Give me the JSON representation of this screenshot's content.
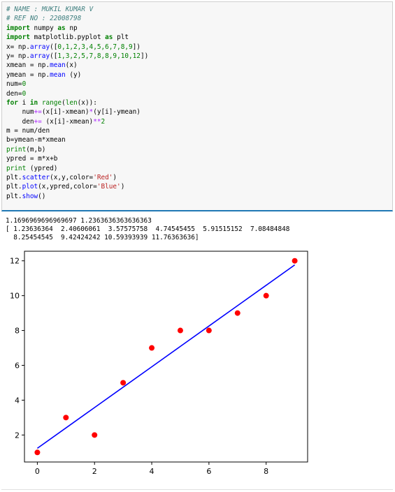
{
  "code": {
    "line1": "# NAME : MUKIL KUMAR V",
    "line2": "# REF NO : 22008798",
    "line3_kw1": "import",
    "line3_mod": " numpy ",
    "line3_kw2": "as",
    "line3_alias": " np",
    "line4_kw1": "import",
    "line4_mod": " matplotlib.pyplot ",
    "line4_kw2": "as",
    "line4_alias": " plt",
    "line5_a": "x= np.",
    "line5_fn": "array",
    "line5_b": "([",
    "line5_nums": "0,1,2,3,4,5,6,7,8,9",
    "line5_c": "])",
    "line6_a": "y= np.",
    "line6_fn": "array",
    "line6_b": "([",
    "line6_nums": "1,3,2,5,7,8,8,9,10,12",
    "line6_c": "])",
    "line7_a": "xmean = np.",
    "line7_fn": "mean",
    "line7_b": "(x)",
    "line8_a": "ymean = np.",
    "line8_fn": "mean",
    "line8_b": " (y)",
    "line9_a": "num=",
    "line9_n": "0",
    "line10_a": "den=",
    "line10_n": "0",
    "line11_kw1": "for",
    "line11_a": " i ",
    "line11_kw2": "in",
    "line11_b": " ",
    "line11_fn1": "range",
    "line11_c": "(",
    "line11_fn2": "len",
    "line11_d": "(x)):",
    "line12_a": "    num",
    "line12_op": "+=",
    "line12_b": "(x[i]-xmean)",
    "line12_op2": "*",
    "line12_c": "(y[i]-ymean)",
    "line13_a": "    den",
    "line13_op": "+=",
    "line13_b": " (x[i]-xmean)",
    "line13_op2": "**",
    "line13_n": "2",
    "line14": "m = num/den",
    "line15": "b=ymean-m*xmean",
    "line16_fn": "print",
    "line16_b": "(m,b)",
    "line17": "ypred = m*x+b",
    "line18_fn": "print",
    "line18_b": " (ypred)",
    "line19_a": "plt.",
    "line19_fn": "scatter",
    "line19_b": "(x,y,color=",
    "line19_s": "'Red'",
    "line19_c": ")",
    "line20_a": "plt.",
    "line20_fn": "plot",
    "line20_b": "(x,ypred,color=",
    "line20_s": "'Blue'",
    "line20_c": ")",
    "line21_a": "plt.",
    "line21_fn": "show",
    "line21_b": "()"
  },
  "output": {
    "line1": "1.1696969696969697 1.2363636363636363",
    "line2": "[ 1.23636364  2.40606061  3.57575758  4.74545455  5.91515152  7.08484848",
    "line3": "  8.25454545  9.42424242 10.59393939 11.76363636]"
  },
  "chart_data": {
    "type": "scatter",
    "title": "",
    "xlabel": "",
    "ylabel": "",
    "xlim": [
      -0.45,
      9.45
    ],
    "ylim": [
      0.45,
      12.55
    ],
    "xticks": [
      "0",
      "2",
      "4",
      "6",
      "8"
    ],
    "yticks": [
      "2",
      "4",
      "6",
      "8",
      "10",
      "12"
    ],
    "grid": false,
    "series": [
      {
        "kind": "scatter",
        "color": "#ff0000",
        "x": [
          0,
          1,
          2,
          3,
          4,
          5,
          6,
          7,
          8,
          9
        ],
        "y": [
          1,
          3,
          2,
          5,
          7,
          8,
          8,
          9,
          10,
          12
        ]
      },
      {
        "kind": "line",
        "color": "#0000ff",
        "x": [
          0,
          1,
          2,
          3,
          4,
          5,
          6,
          7,
          8,
          9
        ],
        "y": [
          1.23636364,
          2.40606061,
          3.57575758,
          4.74545455,
          5.91515152,
          7.08484848,
          8.25454545,
          9.42424242,
          10.59393939,
          11.76363636
        ]
      }
    ]
  }
}
